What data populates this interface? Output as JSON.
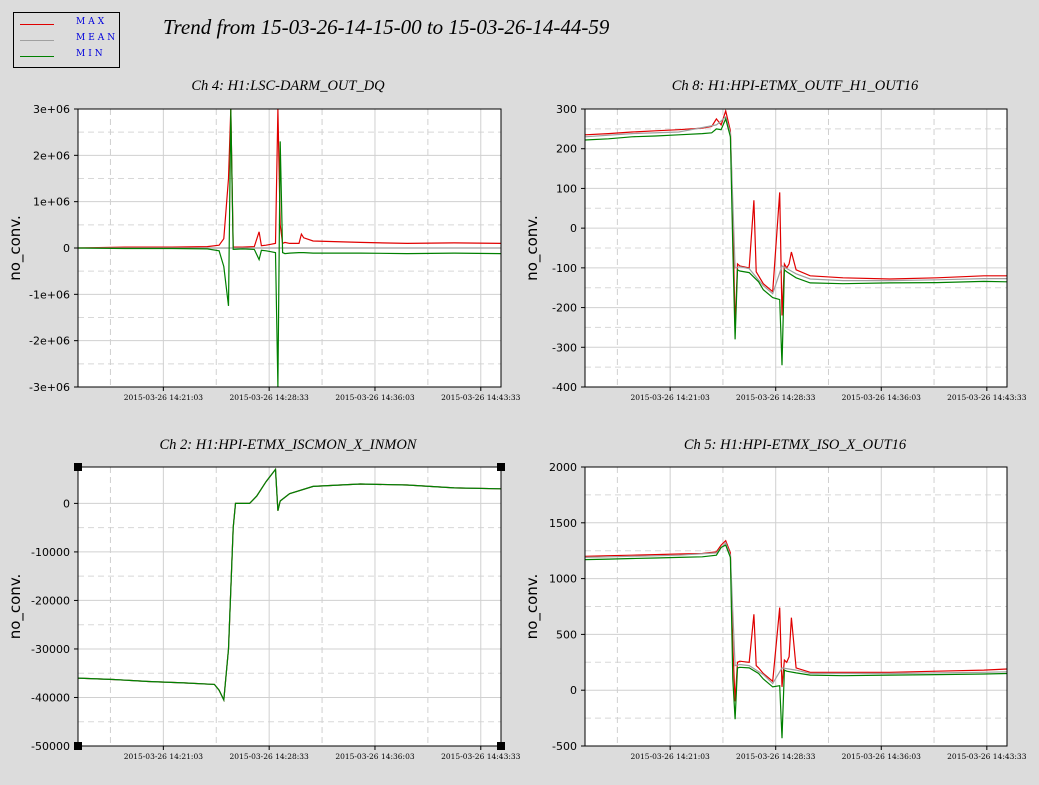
{
  "title": "Trend from 15-03-26-14-15-00 to 15-03-26-14-44-59",
  "legend": [
    {
      "label": "MAX",
      "color": "#e00000"
    },
    {
      "label": "MEAN",
      "color": "#a0a0a0"
    },
    {
      "label": "MIN",
      "color": "#008000"
    }
  ],
  "chart_data": [
    {
      "type": "line",
      "title": "Ch 4: H1:LSC-DARM_OUT_DQ",
      "ylabel": "no_conv.",
      "ylim": [
        -3000000,
        3000000
      ],
      "yticks": [
        -3000000,
        -2000000,
        -1000000,
        0,
        1000000,
        2000000,
        3000000
      ],
      "ytick_labels": [
        "-3e+06",
        "-2e+06",
        "-1e+06",
        "0",
        "1e+06",
        "2e+06",
        "3e+06"
      ],
      "xlim": [
        0,
        1799
      ],
      "xticks": [
        363,
        813,
        1263,
        1713
      ],
      "xtick_labels": [
        "2015-03-26 14:21:03",
        "2015-03-26 14:28:33",
        "2015-03-26 14:36:03",
        "2015-03-26 14:43:33"
      ],
      "grid": true,
      "series": [
        {
          "name": "MAX",
          "color": "#e00000",
          "x": [
            0,
            200,
            400,
            550,
            600,
            620,
            640,
            650,
            660,
            700,
            750,
            770,
            780,
            800,
            820,
            840,
            850,
            860,
            870,
            880,
            900,
            940,
            950,
            960,
            1000,
            1200,
            1400,
            1600,
            1799
          ],
          "y": [
            0,
            20000,
            20000,
            30000,
            60000,
            200000,
            1500000,
            3000000,
            20000,
            20000,
            30000,
            350000,
            50000,
            60000,
            80000,
            100000,
            3000000,
            500000,
            100000,
            120000,
            100000,
            100000,
            300000,
            220000,
            150000,
            120000,
            100000,
            110000,
            100000
          ]
        },
        {
          "name": "MEAN",
          "color": "#a0a0a0",
          "x": [
            0,
            200,
            400,
            550,
            620,
            640,
            660,
            760,
            780,
            840,
            860,
            900,
            960,
            1200,
            1400,
            1600,
            1799
          ],
          "y": [
            0,
            0,
            0,
            0,
            0,
            0,
            0,
            0,
            0,
            0,
            0,
            0,
            0,
            0,
            0,
            0,
            0
          ]
        },
        {
          "name": "MIN",
          "color": "#008000",
          "x": [
            0,
            200,
            400,
            550,
            600,
            620,
            640,
            650,
            660,
            700,
            750,
            770,
            780,
            800,
            820,
            840,
            850,
            860,
            870,
            880,
            900,
            940,
            960,
            1000,
            1200,
            1400,
            1600,
            1799
          ],
          "y": [
            0,
            -10000,
            -10000,
            -20000,
            -60000,
            -400000,
            -1250000,
            3000000,
            -30000,
            -20000,
            -30000,
            -250000,
            -50000,
            -60000,
            -80000,
            -100000,
            -3000000,
            2300000,
            -100000,
            -120000,
            -110000,
            -100000,
            -100000,
            -110000,
            -110000,
            -120000,
            -110000,
            -120000
          ]
        }
      ]
    },
    {
      "type": "line",
      "title": "Ch 8: H1:HPI-ETMX_OUTF_H1_OUT16",
      "ylabel": "no_conv.",
      "ylim": [
        -400,
        300
      ],
      "yticks": [
        -400,
        -300,
        -200,
        -100,
        0,
        100,
        200,
        300
      ],
      "ytick_labels": [
        "-400",
        "-300",
        "-200",
        "-100",
        "0",
        "100",
        "200",
        "300"
      ],
      "xlim": [
        0,
        1799
      ],
      "xticks": [
        363,
        813,
        1263,
        1713
      ],
      "xtick_labels": [
        "2015-03-26 14:21:03",
        "2015-03-26 14:28:33",
        "2015-03-26 14:36:03",
        "2015-03-26 14:43:33"
      ],
      "grid": true,
      "series": [
        {
          "name": "MAX",
          "color": "#e00000",
          "x": [
            0,
            100,
            200,
            300,
            400,
            500,
            540,
            560,
            580,
            600,
            620,
            630,
            640,
            650,
            660,
            700,
            720,
            730,
            740,
            760,
            800,
            830,
            840,
            850,
            860,
            870,
            880,
            900,
            960,
            1100,
            1300,
            1500,
            1700,
            1799
          ],
          "y": [
            235,
            238,
            242,
            245,
            248,
            252,
            256,
            275,
            260,
            295,
            245,
            30,
            -250,
            -90,
            -95,
            -100,
            70,
            -110,
            -120,
            -140,
            -160,
            90,
            -220,
            -90,
            -100,
            -90,
            -60,
            -105,
            -120,
            -125,
            -128,
            -125,
            -120,
            -120
          ]
        },
        {
          "name": "MEAN",
          "color": "#a0a0a0",
          "x": [
            0,
            200,
            400,
            560,
            600,
            620,
            640,
            660,
            700,
            760,
            800,
            840,
            900,
            960,
            1100,
            1300,
            1500,
            1700,
            1799
          ],
          "y": [
            230,
            238,
            242,
            260,
            280,
            240,
            -100,
            -97,
            -102,
            -145,
            -165,
            -95,
            -115,
            -128,
            -132,
            -132,
            -130,
            -127,
            -127
          ]
        },
        {
          "name": "MIN",
          "color": "#008000",
          "x": [
            0,
            100,
            200,
            300,
            400,
            500,
            540,
            560,
            580,
            600,
            620,
            630,
            640,
            650,
            660,
            700,
            740,
            760,
            800,
            830,
            840,
            850,
            860,
            900,
            960,
            1100,
            1300,
            1500,
            1700,
            1799
          ],
          "y": [
            222,
            225,
            230,
            232,
            235,
            238,
            240,
            250,
            248,
            275,
            230,
            -50,
            -280,
            -105,
            -108,
            -112,
            -135,
            -155,
            -175,
            -180,
            -345,
            -105,
            -110,
            -125,
            -138,
            -140,
            -138,
            -137,
            -134,
            -135
          ]
        }
      ]
    },
    {
      "type": "line",
      "title": "Ch 2: H1:HPI-ETMX_ISCMON_X_INMON",
      "ylabel": "no_conv.",
      "ylim": [
        -50000,
        7500
      ],
      "yticks": [
        -50000,
        -40000,
        -30000,
        -20000,
        -10000,
        0
      ],
      "ytick_labels": [
        "-50000",
        "-40000",
        "-30000",
        "-20000",
        "-10000",
        "0"
      ],
      "xlim": [
        0,
        1799
      ],
      "xticks": [
        363,
        813,
        1263,
        1713
      ],
      "xtick_labels": [
        "2015-03-26 14:21:03",
        "2015-03-26 14:28:33",
        "2015-03-26 14:36:03",
        "2015-03-26 14:43:33"
      ],
      "grid": true,
      "series": [
        {
          "name": "MAX",
          "color": "#e00000",
          "x": [
            0,
            150,
            300,
            450,
            580,
            600,
            620,
            640,
            660,
            670,
            730,
            760,
            800,
            840,
            850,
            860,
            900,
            1000,
            1200,
            1400,
            1600,
            1799
          ],
          "y": [
            -36000,
            -36300,
            -36700,
            -37000,
            -37300,
            -38500,
            -40500,
            -30000,
            -5000,
            0,
            0,
            1500,
            4500,
            7000,
            -1500,
            500,
            2000,
            3500,
            4000,
            3800,
            3200,
            3000
          ]
        },
        {
          "name": "MEAN",
          "color": "#a0a0a0",
          "x": [
            0,
            150,
            300,
            450,
            580,
            600,
            620,
            640,
            660,
            670,
            730,
            760,
            800,
            840,
            850,
            860,
            900,
            1000,
            1200,
            1400,
            1600,
            1799
          ],
          "y": [
            -36000,
            -36300,
            -36700,
            -37000,
            -37300,
            -38500,
            -40500,
            -30000,
            -5000,
            0,
            0,
            1500,
            4500,
            7000,
            -1500,
            500,
            2000,
            3500,
            4000,
            3800,
            3200,
            3000
          ]
        },
        {
          "name": "MIN",
          "color": "#008000",
          "x": [
            0,
            150,
            300,
            450,
            580,
            600,
            620,
            640,
            660,
            670,
            730,
            760,
            800,
            840,
            850,
            860,
            900,
            1000,
            1200,
            1400,
            1600,
            1799
          ],
          "y": [
            -36000,
            -36300,
            -36700,
            -37000,
            -37300,
            -38500,
            -40500,
            -30000,
            -5000,
            0,
            0,
            1500,
            4500,
            7000,
            -1500,
            500,
            2000,
            3500,
            4000,
            3800,
            3200,
            3000
          ]
        }
      ]
    },
    {
      "type": "line",
      "title": "Ch 5: H1:HPI-ETMX_ISO_X_OUT16",
      "ylabel": "no_conv.",
      "ylim": [
        -500,
        2000
      ],
      "yticks": [
        -500,
        0,
        500,
        1000,
        1500,
        2000
      ],
      "ytick_labels": [
        "-500",
        "0",
        "500",
        "1000",
        "1500",
        "2000"
      ],
      "xlim": [
        0,
        1799
      ],
      "xticks": [
        363,
        813,
        1263,
        1713
      ],
      "xtick_labels": [
        "2015-03-26 14:21:03",
        "2015-03-26 14:28:33",
        "2015-03-26 14:36:03",
        "2015-03-26 14:43:33"
      ],
      "grid": true,
      "series": [
        {
          "name": "MAX",
          "color": "#e00000",
          "x": [
            0,
            100,
            200,
            300,
            400,
            500,
            560,
            580,
            600,
            620,
            630,
            640,
            650,
            660,
            700,
            720,
            730,
            740,
            760,
            800,
            830,
            840,
            850,
            860,
            870,
            880,
            900,
            960,
            1100,
            1300,
            1500,
            1700,
            1799
          ],
          "y": [
            1200,
            1205,
            1210,
            1215,
            1220,
            1225,
            1240,
            1300,
            1340,
            1230,
            400,
            -100,
            250,
            260,
            250,
            680,
            220,
            200,
            150,
            80,
            740,
            30,
            270,
            250,
            300,
            650,
            200,
            160,
            160,
            160,
            170,
            180,
            190
          ]
        },
        {
          "name": "MEAN",
          "color": "#a0a0a0",
          "x": [
            0,
            200,
            400,
            560,
            600,
            620,
            640,
            660,
            700,
            760,
            800,
            840,
            900,
            960,
            1100,
            1300,
            1500,
            1700,
            1799
          ],
          "y": [
            1190,
            1200,
            1210,
            1230,
            1320,
            1210,
            220,
            230,
            220,
            140,
            60,
            200,
            180,
            150,
            150,
            150,
            155,
            160,
            165
          ]
        },
        {
          "name": "MIN",
          "color": "#008000",
          "x": [
            0,
            100,
            200,
            300,
            400,
            500,
            560,
            580,
            600,
            620,
            630,
            640,
            650,
            660,
            700,
            740,
            760,
            800,
            830,
            840,
            850,
            860,
            900,
            960,
            1100,
            1300,
            1500,
            1700,
            1799
          ],
          "y": [
            1170,
            1175,
            1180,
            1185,
            1190,
            1195,
            1210,
            1280,
            1300,
            1190,
            100,
            -260,
            200,
            205,
            200,
            150,
            100,
            30,
            40,
            -430,
            180,
            170,
            155,
            135,
            130,
            135,
            140,
            145,
            150
          ]
        }
      ]
    }
  ]
}
